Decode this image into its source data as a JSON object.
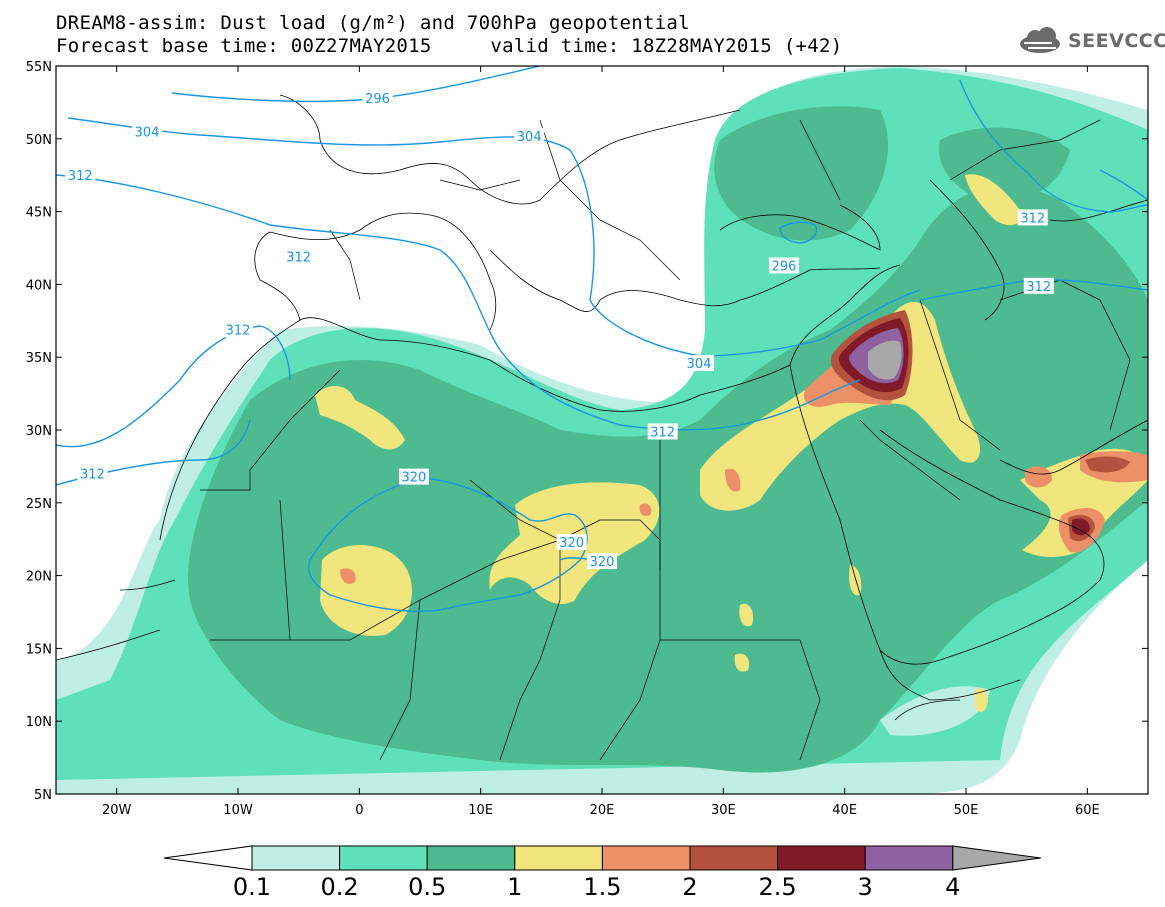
{
  "header": {
    "title_line1": "DREAM8-assim: Dust load (g/m²) and 700hPa geopotential",
    "title_line2": "Forecast base time: 00Z27MAY2015     valid time: 18Z28MAY2015 (+42)",
    "logo_text": "SEEVCCC",
    "logo_icon": "cloud-icon"
  },
  "map": {
    "lon_min": -25,
    "lon_max": 65,
    "lat_min": 5,
    "lat_max": 55,
    "lat_labels": [
      "55N",
      "50N",
      "45N",
      "40N",
      "35N",
      "30N",
      "25N",
      "20N",
      "15N",
      "10N",
      "5N"
    ],
    "lat_values": [
      55,
      50,
      45,
      40,
      35,
      30,
      25,
      20,
      15,
      10,
      5
    ],
    "lon_labels": [
      "20W",
      "10W",
      "0",
      "10E",
      "20E",
      "30E",
      "40E",
      "50E",
      "60E"
    ],
    "lon_values": [
      -20,
      -10,
      0,
      10,
      20,
      30,
      40,
      50,
      60
    ],
    "contours": [
      {
        "label": "296",
        "label_lon": 1.5,
        "label_lat": 52.8
      },
      {
        "label": "304",
        "label_lon": -17.5,
        "label_lat": 50.5
      },
      {
        "label": "304",
        "label_lon": 14,
        "label_lat": 50.2
      },
      {
        "label": "312",
        "label_lon": -23,
        "label_lat": 47.5
      },
      {
        "label": "296",
        "label_lon": 35,
        "label_lat": 41.3
      },
      {
        "label": "312",
        "label_lon": -5,
        "label_lat": 41.9
      },
      {
        "label": "312",
        "label_lon": 55.5,
        "label_lat": 44.6
      },
      {
        "label": "312",
        "label_lon": 56,
        "label_lat": 39.9
      },
      {
        "label": "312",
        "label_lon": -10,
        "label_lat": 36.9
      },
      {
        "label": "304",
        "label_lon": 28,
        "label_lat": 34.6
      },
      {
        "label": "312",
        "label_lon": 25,
        "label_lat": 29.9
      },
      {
        "label": "312",
        "label_lon": -22,
        "label_lat": 27
      },
      {
        "label": "320",
        "label_lon": 4.5,
        "label_lat": 26.8
      },
      {
        "label": "320",
        "label_lon": 17.5,
        "label_lat": 22.3
      },
      {
        "label": "320",
        "label_lon": 20,
        "label_lat": 21
      }
    ],
    "colors": {
      "contour": "#1a96e0",
      "c0": "#bfeee3",
      "c1": "#5ee0b9",
      "c2": "#4eba90",
      "c3": "#f0e67d",
      "c4": "#ec9067",
      "c5": "#b4523d",
      "c6": "#801a28",
      "c7": "#8e62a0",
      "c8": "#a8a8a8"
    }
  },
  "colorbar": {
    "labels": [
      "0.1",
      "0.2",
      "0.5",
      "1",
      "1.5",
      "2",
      "2.5",
      "3",
      "4"
    ],
    "colors": [
      "#bfeee3",
      "#5ee0b9",
      "#4eba90",
      "#f0e67d",
      "#ec9067",
      "#b4523d",
      "#801a28",
      "#8e62a0",
      "#a8a8a8"
    ]
  }
}
